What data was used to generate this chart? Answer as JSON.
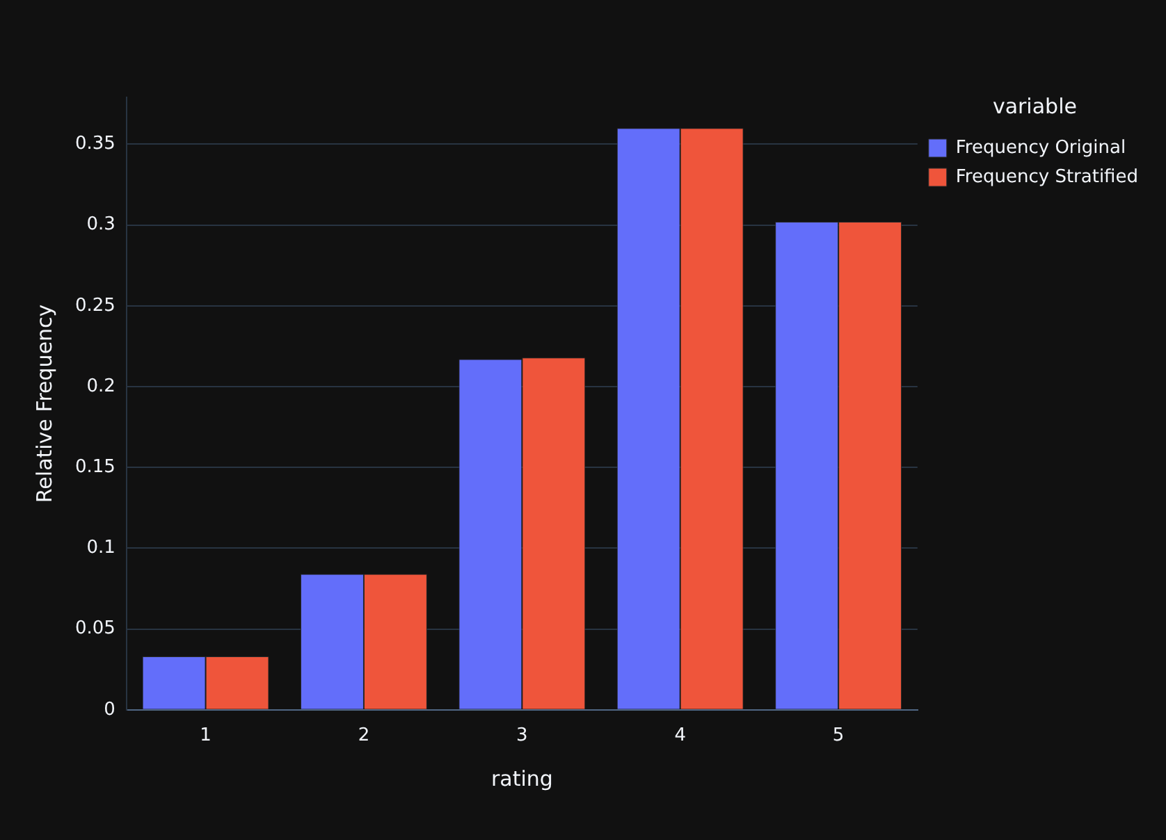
{
  "chart_data": {
    "type": "bar",
    "xlabel": "rating",
    "ylabel": "Relative Frequency",
    "legend_title": "variable",
    "categories": [
      "1",
      "2",
      "3",
      "4",
      "5"
    ],
    "series": [
      {
        "name": "Frequency Original",
        "color": "#636efa",
        "values": [
          0.033,
          0.084,
          0.217,
          0.36,
          0.302
        ]
      },
      {
        "name": "Frequency Stratified",
        "color": "#ef553b",
        "values": [
          0.033,
          0.084,
          0.218,
          0.36,
          0.302
        ]
      }
    ],
    "ylim": [
      0,
      0.379
    ],
    "yticks": [
      0,
      0.05,
      0.1,
      0.15,
      0.2,
      0.25,
      0.3,
      0.35
    ],
    "grid": "y",
    "legend": "top right"
  }
}
